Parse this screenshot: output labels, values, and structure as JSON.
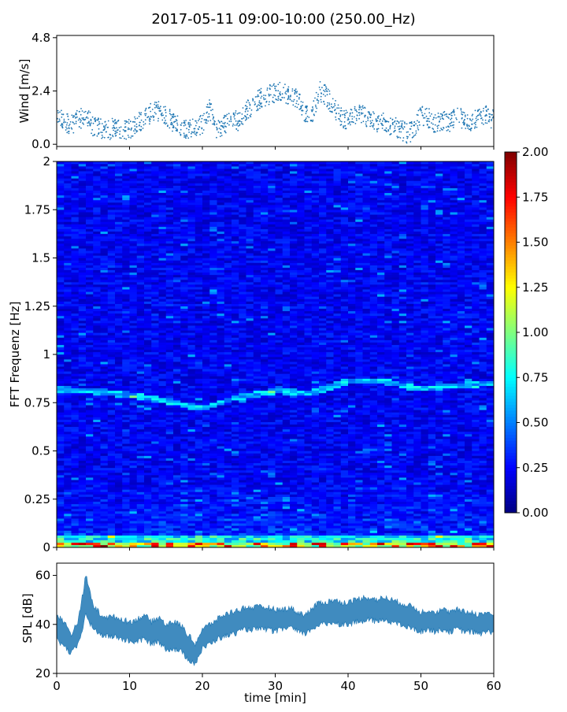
{
  "figure": {
    "title": "2017-05-11 09:00-10:00 (250.00_Hz)"
  },
  "chart_data": [
    {
      "type": "scatter",
      "panel": "wind",
      "title": "",
      "xlabel": "",
      "ylabel": "Wind [m/s]",
      "xlim": [
        0,
        60
      ],
      "ylim": [
        -0.1,
        4.9
      ],
      "yticks": [
        0.0,
        2.4,
        4.8
      ],
      "ytick_labels": [
        "0.0",
        "2.4",
        "4.8"
      ],
      "grid": false,
      "marker_color": "#1f77b4",
      "series": [
        {
          "x": [
            0,
            1,
            2,
            3,
            4,
            5,
            6,
            7,
            8,
            9,
            10,
            11,
            12,
            13,
            14,
            15,
            16,
            17,
            18,
            19,
            20,
            21,
            22,
            23,
            24,
            25,
            26,
            27,
            28,
            29,
            30,
            31,
            32,
            33,
            34,
            35,
            36,
            37,
            38,
            39,
            40,
            41,
            42,
            43,
            44,
            45,
            46,
            47,
            48,
            49,
            50,
            51,
            52,
            53,
            54,
            55,
            56,
            57,
            58,
            59,
            60
          ],
          "y": [
            1.2,
            1.0,
            0.9,
            1.1,
            1.3,
            0.8,
            0.7,
            0.6,
            0.8,
            0.6,
            0.7,
            0.9,
            1.2,
            1.4,
            1.5,
            1.3,
            1.0,
            0.8,
            0.7,
            0.8,
            0.9,
            1.6,
            0.6,
            0.9,
            1.2,
            1.0,
            1.5,
            1.8,
            2.1,
            2.2,
            2.3,
            2.4,
            2.2,
            2.1,
            1.5,
            1.2,
            2.4,
            2.2,
            1.7,
            1.2,
            1.1,
            1.3,
            1.4,
            1.1,
            0.9,
            1.0,
            0.8,
            0.7,
            0.5,
            0.6,
            1.3,
            1.2,
            0.9,
            1.1,
            0.9,
            1.3,
            1.1,
            1.0,
            1.2,
            1.3,
            1.1
          ]
        }
      ]
    },
    {
      "type": "heatmap",
      "panel": "spectrogram",
      "title": "",
      "xlabel": "",
      "ylabel": "FFT Frequenz [Hz]",
      "xlim": [
        0,
        60
      ],
      "ylim": [
        0,
        2
      ],
      "yticks": [
        0,
        0.25,
        0.5,
        0.75,
        1,
        1.25,
        1.5,
        1.75,
        2
      ],
      "ytick_labels": [
        "0",
        "0.25",
        "0.5",
        "0.75",
        "1",
        "1.25",
        "1.5",
        "1.75",
        "2"
      ],
      "colormap": "jet",
      "colorbar": {
        "range": [
          0.0,
          2.0
        ],
        "ticks": [
          "0.00",
          "0.25",
          "0.50",
          "0.75",
          "1.00",
          "1.25",
          "1.50",
          "1.75",
          "2.00"
        ]
      },
      "ridge": {
        "x": [
          0,
          5,
          10,
          15,
          20,
          25,
          30,
          35,
          40,
          45,
          50,
          55,
          60
        ],
        "freq_hz": [
          0.82,
          0.81,
          0.79,
          0.76,
          0.72,
          0.78,
          0.81,
          0.8,
          0.86,
          0.86,
          0.82,
          0.84,
          0.85
        ]
      }
    },
    {
      "type": "area",
      "panel": "spl",
      "title": "",
      "xlabel": "time [min]",
      "ylabel": "SPL [dB]",
      "xlim": [
        0,
        60
      ],
      "ylim": [
        20,
        65
      ],
      "yticks": [
        20,
        40,
        60
      ],
      "ytick_labels": [
        "20",
        "40",
        "60"
      ],
      "xticks": [
        0,
        10,
        20,
        30,
        40,
        50,
        60
      ],
      "xtick_labels": [
        "0",
        "10",
        "20",
        "30",
        "40",
        "50",
        "60"
      ],
      "grid": false,
      "color": "#1f77b4",
      "series": [
        {
          "x": [
            0,
            1,
            2,
            3,
            4,
            5,
            6,
            7,
            8,
            9,
            10,
            11,
            12,
            13,
            14,
            15,
            16,
            17,
            18,
            19,
            20,
            21,
            22,
            23,
            24,
            25,
            26,
            27,
            28,
            29,
            30,
            31,
            32,
            33,
            34,
            35,
            36,
            37,
            38,
            39,
            40,
            41,
            42,
            43,
            44,
            45,
            46,
            47,
            48,
            49,
            50,
            51,
            52,
            53,
            54,
            55,
            56,
            57,
            58,
            59,
            60
          ],
          "low": [
            34,
            31,
            28,
            32,
            44,
            38,
            36,
            35,
            35,
            34,
            33,
            33,
            34,
            32,
            33,
            30,
            30,
            29,
            26,
            24,
            30,
            32,
            34,
            35,
            36,
            37,
            38,
            38,
            38,
            38,
            37,
            38,
            39,
            37,
            36,
            38,
            40,
            40,
            41,
            40,
            40,
            41,
            41,
            42,
            41,
            42,
            41,
            40,
            39,
            38,
            37,
            38,
            37,
            38,
            37,
            38,
            37,
            37,
            36,
            37,
            37
          ],
          "high": [
            44,
            41,
            36,
            42,
            60,
            48,
            44,
            43,
            43,
            42,
            41,
            42,
            44,
            41,
            43,
            40,
            41,
            40,
            36,
            32,
            38,
            40,
            42,
            44,
            45,
            46,
            47,
            47,
            47,
            47,
            46,
            46,
            47,
            45,
            44,
            46,
            49,
            49,
            50,
            49,
            49,
            50,
            51,
            51,
            50,
            51,
            50,
            49,
            48,
            47,
            45,
            46,
            45,
            46,
            45,
            46,
            45,
            45,
            44,
            45,
            44
          ]
        }
      ]
    }
  ]
}
